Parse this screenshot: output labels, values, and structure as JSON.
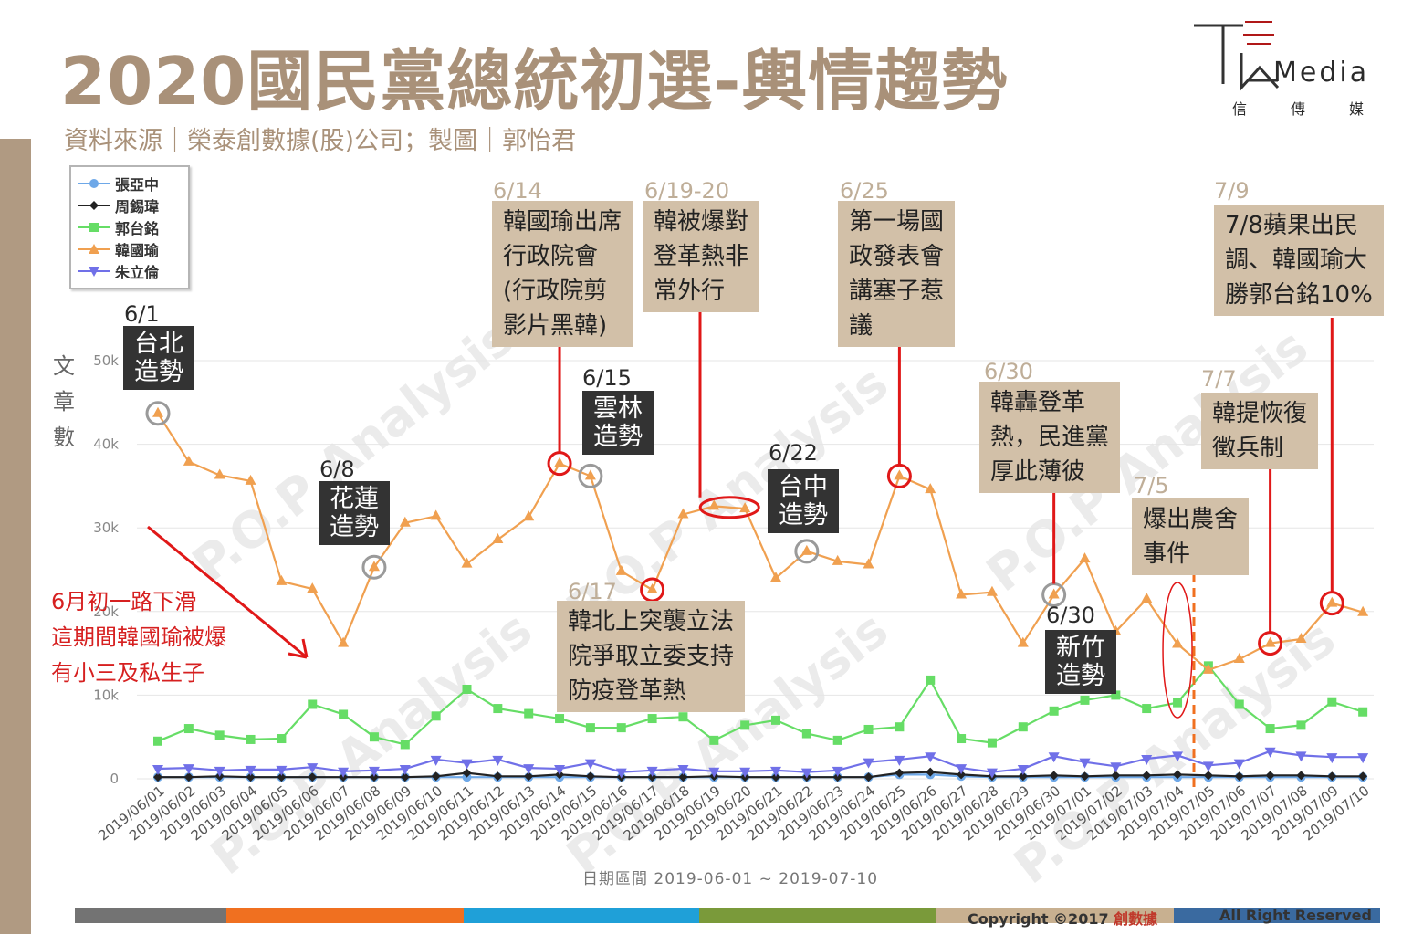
{
  "page": {
    "title": "2020國民黨總統初選-輿情趨勢",
    "subtitle": "資料來源｜榮泰創數據(股)公司；製圖｜郭怡君",
    "logo": {
      "text": "Media",
      "sub1": "信",
      "sub2": "傳",
      "sub3": "媒"
    },
    "ylabel": "文章數",
    "x_range_label": "日期區間 2019-06-01 ~ 2019-07-10",
    "footer": {
      "copyright_prefix": "Copyright ©2017",
      "copyright_brand": "創數據",
      "rights": "All Right Reserved",
      "colors": [
        "#737373",
        "#f07020",
        "#1fa0d8",
        "#7a9a3a",
        "#c8b090",
        "#3a6aa0"
      ]
    },
    "red_note": [
      "6月初一路下滑",
      "這期間韓國瑜被爆",
      "有小三及私生子"
    ]
  },
  "callouts": {
    "c614": {
      "date": "6/14",
      "lines": [
        "韓國瑜出席",
        "行政院會",
        "(行政院剪",
        "影片黑韓)"
      ]
    },
    "c619": {
      "date": "6/19-20",
      "lines": [
        "韓被爆對",
        "登革熱非",
        "常外行"
      ]
    },
    "c625": {
      "date": "6/25",
      "lines": [
        "第一場國",
        "政發表會",
        "講塞子惹",
        "議"
      ]
    },
    "c79": {
      "date": "7/9",
      "lines": [
        "7/8蘋果出民",
        "調、韓國瑜大",
        "勝郭台銘10%"
      ]
    },
    "c630": {
      "date": "6/30",
      "lines": [
        "韓轟登革",
        "熱，民進黨",
        "厚此薄彼"
      ]
    },
    "c77": {
      "date": "7/7",
      "lines": [
        "韓提恢復",
        "徵兵制"
      ]
    },
    "c75": {
      "date": "7/5",
      "lines": [
        "爆出農舍",
        "事件"
      ]
    },
    "c617": {
      "date": "6/17",
      "lines": [
        "韓北上突襲立法",
        "院爭取立委支持",
        "防疫登革熱"
      ]
    }
  },
  "rallies": {
    "r61": {
      "date": "6/1",
      "lines": [
        "台北",
        "造勢"
      ]
    },
    "r68": {
      "date": "6/8",
      "lines": [
        "花蓮",
        "造勢"
      ]
    },
    "r615": {
      "date": "6/15",
      "lines": [
        "雲林",
        "造勢"
      ]
    },
    "r622": {
      "date": "6/22",
      "lines": [
        "台中",
        "造勢"
      ]
    },
    "r630b": {
      "date": "6/30",
      "lines": [
        "新竹",
        "造勢"
      ]
    }
  },
  "chart_data": {
    "type": "line",
    "title": "2020國民黨總統初選-輿情趨勢",
    "xlabel": "日期區間 2019-06-01 ~ 2019-07-10",
    "ylabel": "文章數",
    "ylim": [
      0,
      50000
    ],
    "yticks": [
      0,
      10000,
      20000,
      30000,
      40000,
      50000
    ],
    "ytick_labels": [
      "0",
      "10k",
      "20k",
      "30k",
      "40k",
      "50k"
    ],
    "grid": true,
    "legend_position": "top-left",
    "x": [
      "2019/06/01",
      "2019/06/02",
      "2019/06/03",
      "2019/06/04",
      "2019/06/05",
      "2019/06/06",
      "2019/06/07",
      "2019/06/08",
      "2019/06/09",
      "2019/06/10",
      "2019/06/11",
      "2019/06/12",
      "2019/06/13",
      "2019/06/14",
      "2019/06/15",
      "2019/06/16",
      "2019/06/17",
      "2019/06/18",
      "2019/06/19",
      "2019/06/20",
      "2019/06/21",
      "2019/06/22",
      "2019/06/23",
      "2019/06/24",
      "2019/06/25",
      "2019/06/26",
      "2019/06/27",
      "2019/06/28",
      "2019/06/29",
      "2019/06/30",
      "2019/07/01",
      "2019/07/02",
      "2019/07/03",
      "2019/07/04",
      "2019/07/05",
      "2019/07/06",
      "2019/07/07",
      "2019/07/08",
      "2019/07/09",
      "2019/07/10"
    ],
    "series": [
      {
        "name": "張亞中",
        "color": "#6ea8e8",
        "marker": "circle",
        "values": [
          200,
          200,
          200,
          200,
          200,
          200,
          200,
          200,
          200,
          200,
          200,
          200,
          200,
          200,
          200,
          200,
          200,
          200,
          200,
          200,
          200,
          200,
          200,
          200,
          500,
          500,
          300,
          200,
          200,
          200,
          200,
          200,
          200,
          200,
          200,
          200,
          200,
          200,
          200,
          200
        ]
      },
      {
        "name": "周錫瑋",
        "color": "#222222",
        "marker": "diamond",
        "values": [
          200,
          200,
          300,
          200,
          200,
          200,
          200,
          200,
          200,
          300,
          700,
          300,
          300,
          500,
          300,
          200,
          200,
          200,
          300,
          200,
          200,
          200,
          200,
          200,
          700,
          800,
          500,
          300,
          300,
          400,
          300,
          400,
          400,
          500,
          400,
          300,
          400,
          400,
          300,
          300
        ]
      },
      {
        "name": "郭台銘",
        "color": "#66dd66",
        "marker": "square",
        "values": [
          4500,
          6000,
          5200,
          4700,
          4800,
          8900,
          7700,
          5000,
          4100,
          7500,
          10700,
          8400,
          7800,
          7200,
          6100,
          6100,
          7200,
          7400,
          4600,
          6400,
          7000,
          5400,
          4600,
          5900,
          6200,
          11800,
          4800,
          4300,
          6200,
          8100,
          9400,
          10000,
          8400,
          9100,
          13500,
          8900,
          6000,
          6400,
          9200,
          8000
        ]
      },
      {
        "name": "韓國瑜",
        "color": "#f0a050",
        "marker": "triangle",
        "values": [
          43700,
          37900,
          36300,
          35600,
          23600,
          22700,
          16200,
          25300,
          30600,
          31400,
          25700,
          28600,
          31300,
          37700,
          36200,
          24800,
          22600,
          31600,
          32600,
          32300,
          24000,
          27200,
          26000,
          25600,
          36200,
          34600,
          22000,
          22300,
          16200,
          22000,
          26300,
          17600,
          21500,
          16100,
          13000,
          14300,
          16200,
          16700,
          21000,
          19900
        ]
      },
      {
        "name": "朱立倫",
        "color": "#7070e8",
        "marker": "triangle-down",
        "values": [
          1200,
          1300,
          1000,
          1100,
          1100,
          1400,
          900,
          1000,
          1200,
          2300,
          1900,
          2300,
          1300,
          1200,
          1900,
          800,
          1000,
          1200,
          900,
          900,
          1000,
          800,
          1000,
          2000,
          2300,
          2700,
          1300,
          800,
          1200,
          2700,
          2000,
          1500,
          2400,
          2800,
          1600,
          1900,
          3300,
          2800,
          2600,
          2600
        ]
      }
    ]
  }
}
